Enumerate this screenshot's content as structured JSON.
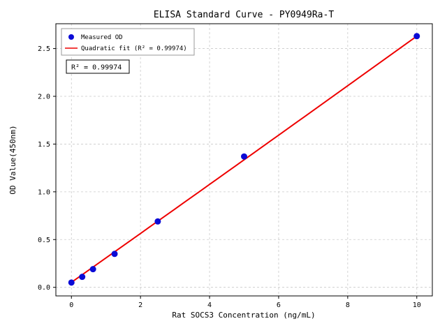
{
  "chart_data": {
    "type": "scatter",
    "title": "ELISA Standard Curve - PY0949Ra-T",
    "xlabel": "Rat SOCS3 Concentration (ng/mL)",
    "ylabel": "OD Value(450nm)",
    "xlim": [
      -0.45,
      10.45
    ],
    "ylim": [
      -0.09,
      2.76
    ],
    "xticks": [
      "0",
      "2",
      "4",
      "6",
      "8",
      "10"
    ],
    "xtick_values": [
      0,
      2,
      4,
      6,
      8,
      10
    ],
    "yticks": [
      "0.0",
      "0.5",
      "1.0",
      "1.5",
      "2.0",
      "2.5"
    ],
    "ytick_values": [
      0.0,
      0.5,
      1.0,
      1.5,
      2.0,
      2.5
    ],
    "grid": true,
    "points": {
      "x": [
        0,
        0.3125,
        0.625,
        1.25,
        2.5,
        5,
        10
      ],
      "y": [
        0.05,
        0.11,
        0.19,
        0.35,
        0.69,
        1.37,
        2.63
      ]
    },
    "fit": {
      "type": "quadratic",
      "coefficients": [
        0.052,
        0.2555,
        0.00023
      ],
      "x_range": [
        0,
        10
      ]
    },
    "legend": {
      "position": "upper left",
      "items": [
        {
          "label": "Measured OD",
          "marker": "dot",
          "color": "#0b0bd6"
        },
        {
          "label": "Quadratic fit (R² = 0.99974)",
          "marker": "line",
          "color": "#ee0000"
        }
      ]
    },
    "annotation": "R² = 0.99974",
    "colors": {
      "points": "#0b0bd6",
      "fit": "#ee0000",
      "grid": "#c9c9c9",
      "axis": "#000000",
      "legend_border": "#9a9a9a",
      "background": "#ffffff"
    }
  }
}
